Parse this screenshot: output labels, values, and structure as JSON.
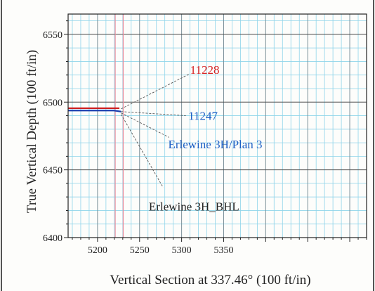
{
  "chart_data": {
    "type": "line",
    "title": "",
    "xlabel": "Vertical Section at 337.46° (100 ft/in)",
    "ylabel": "True Vertical Depth (100 ft/in)",
    "xlim": [
      5165,
      5520
    ],
    "ylim": [
      6400,
      6565
    ],
    "x_ticks": [
      5200,
      5250,
      5300,
      5350
    ],
    "y_ticks": [
      6400,
      6450,
      6500,
      6550
    ],
    "grid": true,
    "series": [
      {
        "name": "",
        "color": "#d02020",
        "x": [
          5165,
          5226
        ],
        "y": [
          6495.5,
          6495.5
        ]
      },
      {
        "name": "",
        "color": "#1a3fb0",
        "x": [
          5165,
          5219,
          5228
        ],
        "y": [
          6493.8,
          6493.8,
          6493.0
        ]
      }
    ],
    "reference_lines": {
      "x": [
        5221,
        5230.5
      ],
      "color": "#e98a9a"
    },
    "annotations": [
      {
        "text": "11228",
        "color": "#d82020",
        "point": [
          5228,
          6495
        ],
        "label_at": [
          5310,
          6521
        ],
        "line_to": [
          5310,
          6521
        ]
      },
      {
        "text": "11247",
        "color": "#1c5fc4",
        "point": [
          5228,
          6493
        ],
        "label_at": [
          5308,
          6487
        ],
        "line_to": [
          5305,
          6490
        ]
      },
      {
        "text": "Erlewine 3H/Plan 3",
        "color": "#1c5fc4",
        "point": [
          5228,
          6492
        ],
        "label_at": [
          5284,
          6466
        ],
        "line_to": [
          5285,
          6474
        ]
      },
      {
        "text": "Erlewine 3H_BHL",
        "color": "#222222",
        "point": [
          5228,
          6491
        ],
        "label_at": [
          5261,
          6420
        ],
        "line_to": [
          5278,
          6437
        ]
      }
    ]
  }
}
